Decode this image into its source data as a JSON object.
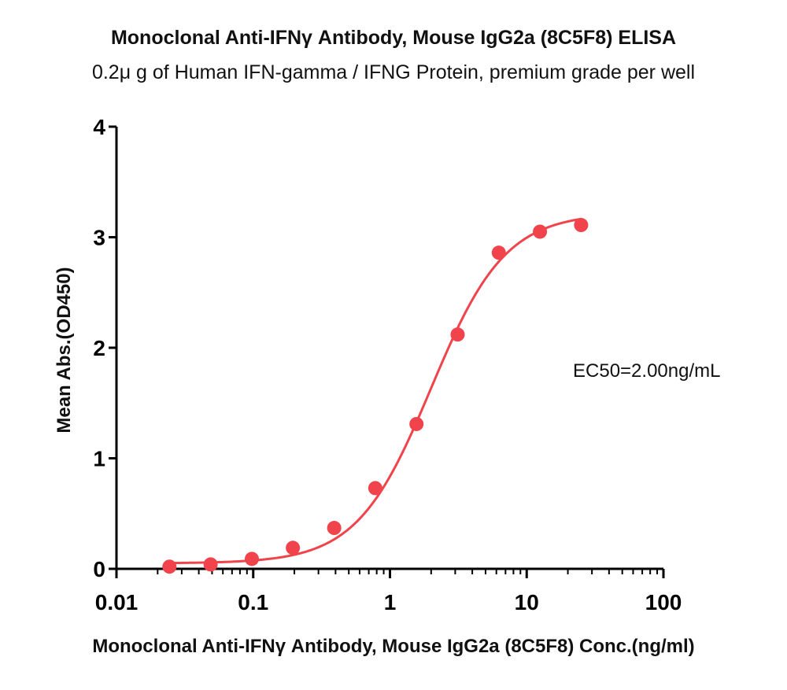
{
  "chart_data": {
    "type": "scatter",
    "title": "Monoclonal Anti-IFNγ   Antibody, Mouse IgG2a (8C5F8) ELISA",
    "subtitle": "0.2μ g of Human IFN-gamma / IFNG Protein, premium grade per well",
    "xlabel": "Monoclonal Anti-IFNγ   Antibody, Mouse IgG2a (8C5F8) Conc.(ng/ml)",
    "ylabel": "Mean Abs.(OD450)",
    "x_scale": "log",
    "xlim": [
      0.01,
      100
    ],
    "ylim": [
      0,
      4
    ],
    "x_ticks": [
      "0.01",
      "0.1",
      "1",
      "10",
      "100"
    ],
    "y_ticks": [
      "0",
      "1",
      "2",
      "3",
      "4"
    ],
    "grid": false,
    "legend": "none",
    "color": "#f0434b",
    "annotation": "EC50=2.00ng/mL",
    "series": [
      {
        "x": [
          0.0244,
          0.0488,
          0.0977,
          0.195,
          0.391,
          0.781,
          1.563,
          3.125,
          6.25,
          12.5,
          25
        ],
        "y": [
          0.02,
          0.04,
          0.09,
          0.19,
          0.37,
          0.73,
          1.31,
          2.12,
          2.86,
          3.05,
          3.11
        ]
      }
    ],
    "fit": {
      "model": "4PL",
      "bottom": 0.05,
      "top": 3.22,
      "ec50": 2.0,
      "hill": 1.6
    }
  }
}
